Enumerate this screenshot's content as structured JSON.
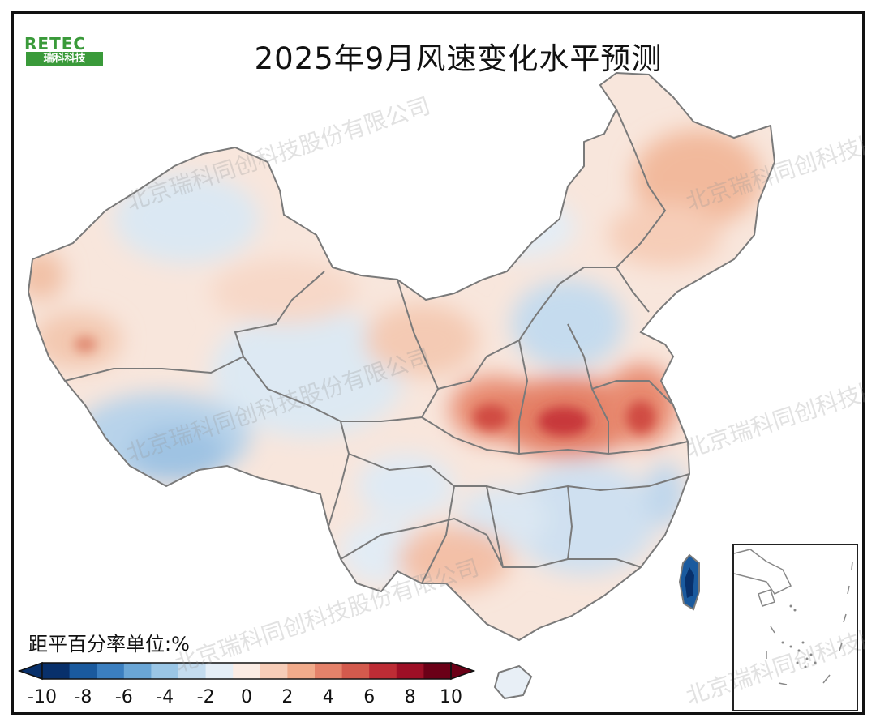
{
  "title": "2025年9月风速变化水平预测",
  "logo": {
    "brand": "RETEC",
    "subtitle": "瑞科科技"
  },
  "watermark": "北京瑞科同创科技股份有限公司",
  "legend": {
    "unit_label": "距平百分率单位:%",
    "ticks": [
      "-10",
      "-8",
      "-6",
      "-4",
      "-2",
      "0",
      "2",
      "4",
      "6",
      "8",
      "10"
    ],
    "colors": [
      "#08306b",
      "#1a5a9e",
      "#3b7fc0",
      "#6aa6d6",
      "#9ac6e6",
      "#c4dcef",
      "#e5eef6",
      "#fbece4",
      "#f7cdb8",
      "#f1ab8b",
      "#e5826a",
      "#d35a4d",
      "#bd2c35",
      "#9d0f26",
      "#6b0017"
    ]
  },
  "colors": {
    "low": "#2f6fb5",
    "neutral": "#eef3f8",
    "high": "#d4463a",
    "border": "#7a7a7a"
  }
}
